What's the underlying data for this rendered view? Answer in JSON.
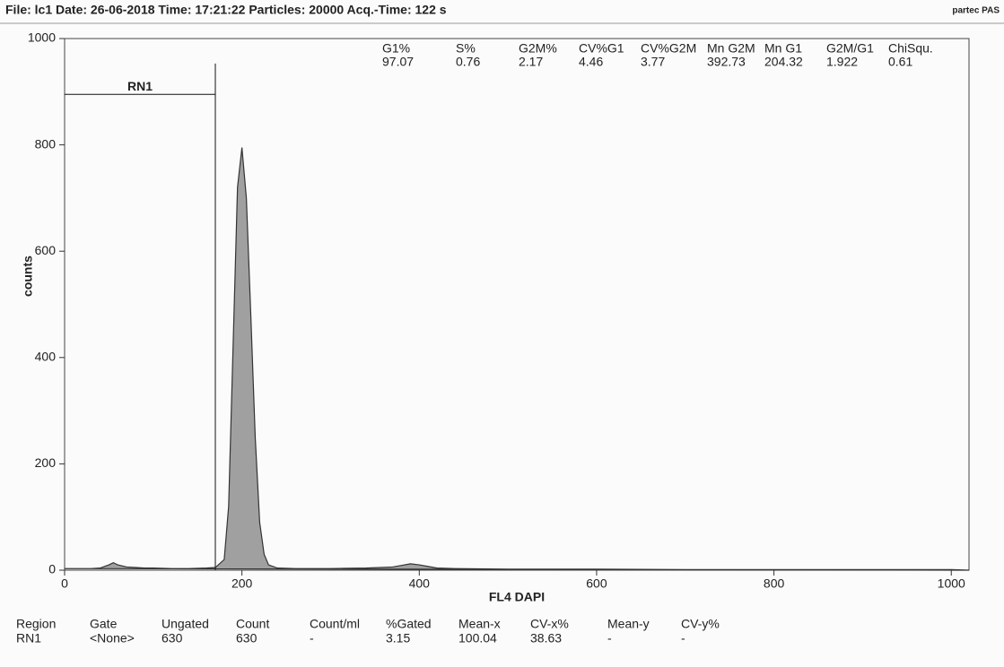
{
  "header": {
    "info": "File: lc1  Date: 26-06-2018  Time: 17:21:22  Particles: 20000  Acq.-Time: 122 s",
    "brand": "partec PAS"
  },
  "stats": {
    "columns": [
      "G1%",
      "S%",
      "G2M%",
      "CV%G1",
      "CV%G2M",
      "Mn G2M",
      "Mn G1",
      "G2M/G1",
      "ChiSqu."
    ],
    "values": [
      "97.07",
      "0.76",
      "2.17",
      "4.46",
      "3.77",
      "392.73",
      "204.32",
      "1.922",
      "0.61"
    ]
  },
  "chart_data": {
    "type": "area",
    "x_label": "FL4  DAPI",
    "y_label": "counts",
    "x": [
      0,
      10,
      20,
      30,
      40,
      50,
      55,
      60,
      70,
      80,
      90,
      100,
      120,
      140,
      160,
      170,
      180,
      185,
      190,
      195,
      200,
      205,
      210,
      215,
      220,
      225,
      230,
      240,
      260,
      300,
      340,
      370,
      380,
      390,
      400,
      410,
      420,
      440,
      500,
      600,
      700,
      800,
      900,
      1000,
      1020
    ],
    "values": [
      3,
      3,
      3,
      3,
      4,
      10,
      14,
      10,
      6,
      5,
      4,
      4,
      3,
      3,
      4,
      5,
      20,
      120,
      420,
      720,
      795,
      700,
      480,
      250,
      90,
      30,
      10,
      4,
      3,
      3,
      4,
      6,
      9,
      12,
      10,
      7,
      4,
      3,
      2,
      2,
      1,
      1,
      1,
      1,
      0
    ],
    "color": "#333333",
    "fill": "#a0a0a0",
    "xlim": [
      0,
      1020
    ],
    "ylim": [
      0,
      1000
    ],
    "xticks": [
      0,
      200,
      400,
      600,
      800,
      1000
    ],
    "yticks": [
      0,
      200,
      400,
      600,
      800,
      1000
    ],
    "region": {
      "name": "RN1",
      "x": [
        0,
        170
      ],
      "level": 895,
      "top": 953
    }
  },
  "results": {
    "columns": [
      "Region",
      "Gate",
      "Ungated",
      "Count",
      "Count/ml",
      "%Gated",
      "Mean-x",
      "CV-x%",
      "Mean-y",
      "CV-y%"
    ],
    "values": [
      "RN1",
      "<None>",
      "630",
      "630",
      "-",
      "3.15",
      "100.04",
      "38.63",
      "-",
      "-"
    ]
  }
}
